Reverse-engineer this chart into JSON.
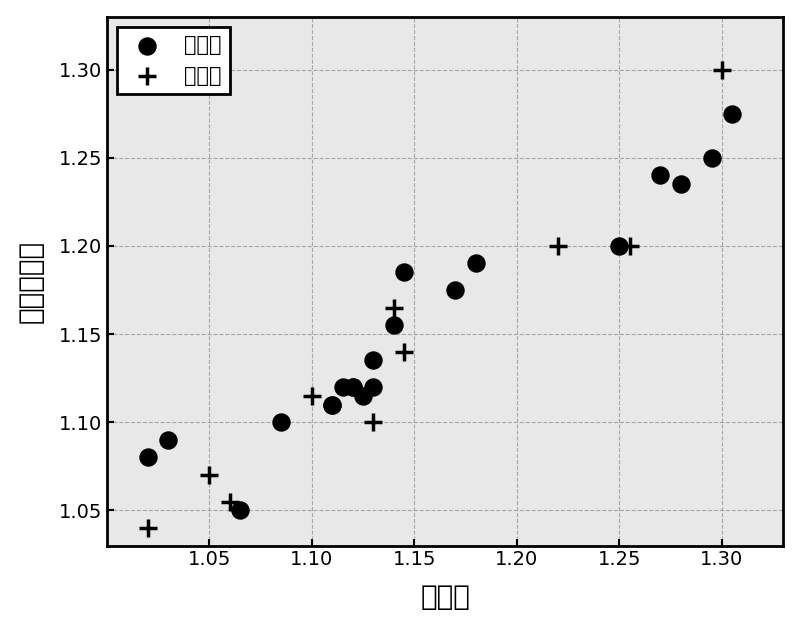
{
  "train_x": [
    1.02,
    1.03,
    1.065,
    1.085,
    1.11,
    1.11,
    1.115,
    1.12,
    1.12,
    1.125,
    1.13,
    1.13,
    1.14,
    1.145,
    1.17,
    1.18,
    1.25,
    1.27,
    1.28,
    1.295,
    1.305
  ],
  "train_y": [
    1.08,
    1.09,
    1.05,
    1.1,
    1.11,
    1.11,
    1.12,
    1.12,
    1.12,
    1.115,
    1.135,
    1.12,
    1.155,
    1.185,
    1.175,
    1.19,
    1.2,
    1.24,
    1.235,
    1.25,
    1.275
  ],
  "pred_x": [
    1.02,
    1.05,
    1.06,
    1.1,
    1.13,
    1.14,
    1.145,
    1.22,
    1.255,
    1.3
  ],
  "pred_y": [
    1.04,
    1.07,
    1.055,
    1.115,
    1.1,
    1.165,
    1.14,
    1.2,
    1.2,
    1.3
  ],
  "xlabel": "观测値",
  "ylabel": "模型计算値",
  "legend_train": "训练集",
  "legend_pred": "预测集",
  "xlim": [
    1.0,
    1.33
  ],
  "ylim": [
    1.03,
    1.33
  ],
  "xticks": [
    1.05,
    1.1,
    1.15,
    1.2,
    1.25,
    1.3
  ],
  "yticks": [
    1.05,
    1.1,
    1.15,
    1.2,
    1.25,
    1.3
  ],
  "marker_color": "#000000",
  "bg_color": "#ffffff",
  "axes_bg_color": "#e8e8e8"
}
